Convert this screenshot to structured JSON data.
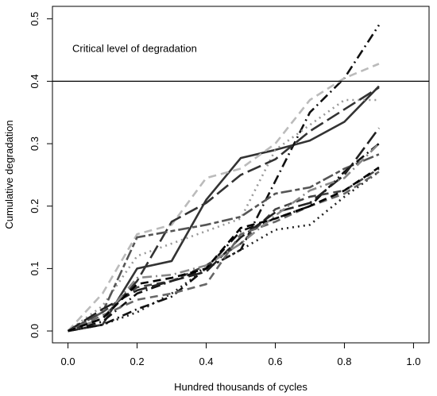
{
  "chart_data": {
    "type": "line",
    "xlabel": "Hundred thousands of cycles",
    "ylabel": "Cumulative degradation",
    "xlim": [
      0,
      1.0
    ],
    "ylim": [
      0,
      0.5
    ],
    "x_ticks": [
      "0.0",
      "0.2",
      "0.4",
      "0.6",
      "0.8",
      "1.0"
    ],
    "y_ticks": [
      "0.0",
      "0.1",
      "0.2",
      "0.3",
      "0.4",
      "0.5"
    ],
    "x_tick_values": [
      0,
      0.2,
      0.4,
      0.6,
      0.8,
      1.0
    ],
    "y_tick_values": [
      0,
      0.1,
      0.2,
      0.3,
      0.4,
      0.5
    ],
    "grid": false,
    "reference_line": {
      "y": 0.4,
      "label": "Critical level of degradation"
    },
    "x": [
      0,
      0.1,
      0.2,
      0.3,
      0.4,
      0.5,
      0.6,
      0.7,
      0.8,
      0.9
    ],
    "series": [
      {
        "color": "#333333",
        "dash": "solid",
        "values": [
          0,
          0.01,
          0.1,
          0.112,
          0.21,
          0.277,
          0.29,
          0.305,
          0.335,
          0.392
        ]
      },
      {
        "color": "#111111",
        "dash": "dashdot",
        "values": [
          0,
          0.015,
          0.06,
          0.08,
          0.1,
          0.13,
          0.24,
          0.35,
          0.405,
          0.49
        ]
      },
      {
        "color": "#bbbbbb",
        "dash": "dashed",
        "values": [
          0,
          0.06,
          0.155,
          0.17,
          0.245,
          0.26,
          0.3,
          0.37,
          0.405,
          0.428
        ]
      },
      {
        "color": "#999999",
        "dash": "dotted",
        "values": [
          0,
          0.04,
          0.12,
          0.14,
          0.16,
          0.18,
          0.29,
          0.33,
          0.37,
          0.37
        ]
      },
      {
        "color": "#333333",
        "dash": "longdash",
        "values": [
          0,
          0.02,
          0.08,
          0.175,
          0.205,
          0.25,
          0.275,
          0.32,
          0.355,
          0.39
        ]
      },
      {
        "color": "#555555",
        "dash": "twodash",
        "values": [
          0,
          0.03,
          0.15,
          0.16,
          0.17,
          0.183,
          0.22,
          0.23,
          0.26,
          0.283
        ]
      },
      {
        "color": "#222222",
        "dash": "dotted",
        "values": [
          0,
          0.01,
          0.03,
          0.06,
          0.1,
          0.13,
          0.162,
          0.17,
          0.215,
          0.255
        ]
      },
      {
        "color": "#111111",
        "dash": "dashdot",
        "values": [
          0,
          0.01,
          0.035,
          0.055,
          0.1,
          0.16,
          0.18,
          0.2,
          0.255,
          0.3
        ]
      },
      {
        "color": "#444444",
        "dash": "dashed",
        "values": [
          0,
          0.03,
          0.07,
          0.08,
          0.105,
          0.14,
          0.195,
          0.215,
          0.225,
          0.26
        ]
      },
      {
        "color": "#222222",
        "dash": "longdash",
        "values": [
          0,
          0.035,
          0.065,
          0.08,
          0.095,
          0.15,
          0.19,
          0.205,
          0.25,
          0.325
        ]
      },
      {
        "color": "#666666",
        "dash": "dashed",
        "values": [
          0,
          0.025,
          0.05,
          0.06,
          0.075,
          0.155,
          0.175,
          0.2,
          0.22,
          0.255
        ]
      },
      {
        "color": "#888888",
        "dash": "dashdot",
        "values": [
          0,
          0.02,
          0.085,
          0.09,
          0.105,
          0.14,
          0.185,
          0.225,
          0.245,
          0.3
        ]
      },
      {
        "color": "#000000",
        "dash": "dashed",
        "values": [
          0,
          0.02,
          0.075,
          0.085,
          0.1,
          0.165,
          0.18,
          0.2,
          0.225,
          0.262
        ]
      }
    ]
  }
}
